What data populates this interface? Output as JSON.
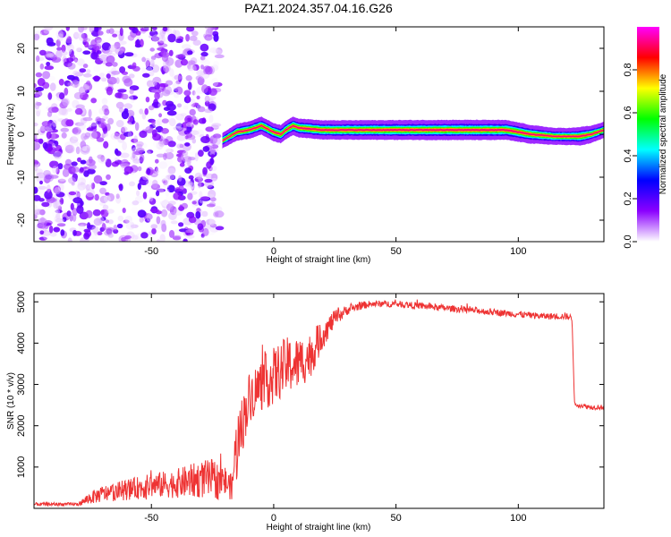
{
  "title": "PAZ1.2024.357.04.16.G26",
  "chart_data": [
    {
      "type": "heatmap",
      "xlabel": "Height of straight line (km)",
      "ylabel": "Frequency (Hz)",
      "xlim": [
        -98,
        135
      ],
      "ylim": [
        -25,
        25
      ],
      "x_ticks": [
        -50,
        0,
        50,
        100
      ],
      "x_tick_labels": [
        "-50",
        "0",
        "50",
        "100"
      ],
      "y_ticks": [
        -20,
        -10,
        0,
        10,
        20
      ],
      "y_tick_labels": [
        "-20",
        "-10",
        "0",
        "10",
        "20"
      ],
      "noise_region_x": [
        -98,
        -22
      ],
      "ridge_frequency": [
        [
          -21,
          -1.5
        ],
        [
          -18,
          -0.5
        ],
        [
          -15,
          0.5
        ],
        [
          -10,
          1.0
        ],
        [
          -5,
          2.0
        ],
        [
          0,
          0.5
        ],
        [
          3,
          0.0
        ],
        [
          5,
          1.0
        ],
        [
          8,
          2.0
        ],
        [
          10,
          1.5
        ],
        [
          20,
          1.0
        ],
        [
          50,
          1.0
        ],
        [
          80,
          1.0
        ],
        [
          95,
          1.0
        ],
        [
          100,
          0.5
        ],
        [
          105,
          0.0
        ],
        [
          115,
          -0.5
        ],
        [
          125,
          -0.5
        ],
        [
          130,
          0.0
        ],
        [
          135,
          1.0
        ]
      ],
      "ridge_amplitude": [
        [
          -21,
          0.25
        ],
        [
          -15,
          0.45
        ],
        [
          -5,
          0.6
        ],
        [
          5,
          0.65
        ],
        [
          15,
          0.75
        ],
        [
          30,
          0.8
        ],
        [
          50,
          0.85
        ],
        [
          70,
          0.9
        ],
        [
          90,
          0.9
        ],
        [
          100,
          0.8
        ],
        [
          115,
          0.45
        ],
        [
          122,
          0.5
        ],
        [
          126,
          0.7
        ],
        [
          130,
          0.5
        ],
        [
          135,
          0.35
        ]
      ],
      "colorbar": {
        "label": "Normalized spectral amplitude",
        "range": [
          0,
          1
        ],
        "ticks": [
          0.0,
          0.2,
          0.4,
          0.6,
          0.8
        ],
        "tick_labels": [
          "0.0",
          "0.2",
          "0.4",
          "0.6",
          "0.8"
        ],
        "colors": [
          "#ffffff",
          "#8b00ff",
          "#0000ff",
          "#00ffff",
          "#00ff00",
          "#ffff00",
          "#ff0000",
          "#ff00ff"
        ]
      }
    },
    {
      "type": "line",
      "xlabel": "Height of straight line (km)",
      "ylabel": "SNR (10 * v/v)",
      "xlim": [
        -98,
        135
      ],
      "ylim": [
        0,
        5200
      ],
      "x_ticks": [
        -50,
        0,
        50,
        100
      ],
      "x_tick_labels": [
        "-50",
        "0",
        "50",
        "100"
      ],
      "y_ticks": [
        1000,
        2000,
        3000,
        4000,
        5000
      ],
      "y_tick_labels": [
        "1000",
        "2000",
        "3000",
        "4000",
        "5000"
      ],
      "color": "#ee3333",
      "series": [
        {
          "x": [
            -98,
            -80,
            -75,
            -70,
            -60,
            -50,
            -40,
            -30,
            -25,
            -20,
            -17,
            -16,
            -15,
            -13,
            -10,
            -5,
            0,
            5,
            10,
            15,
            20,
            25,
            30,
            35,
            40,
            50,
            60,
            70,
            80,
            90,
            100,
            110,
            115,
            120,
            122,
            123,
            125,
            130,
            135
          ],
          "y": [
            100,
            100,
            250,
            350,
            450,
            550,
            600,
            700,
            700,
            650,
            500,
            1200,
            1500,
            2000,
            2700,
            3000,
            3200,
            3450,
            3500,
            3700,
            4200,
            4600,
            4800,
            4900,
            4950,
            4950,
            4900,
            4850,
            4800,
            4750,
            4700,
            4650,
            4650,
            4650,
            4600,
            2500,
            2500,
            2450,
            2450
          ],
          "noise": [
            40,
            40,
            150,
            200,
            250,
            300,
            350,
            450,
            500,
            400,
            300,
            600,
            900,
            700,
            600,
            650,
            700,
            700,
            650,
            550,
            350,
            200,
            120,
            100,
            80,
            80,
            80,
            80,
            80,
            80,
            80,
            80,
            80,
            80,
            80,
            60,
            60,
            60,
            60
          ]
        }
      ]
    }
  ]
}
